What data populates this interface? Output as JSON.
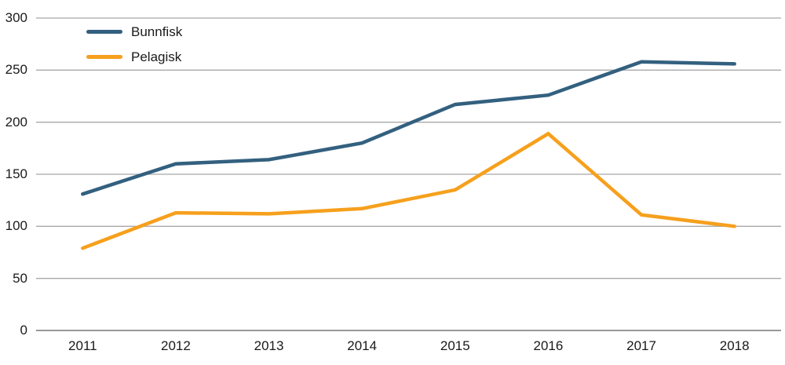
{
  "chart_data": {
    "type": "line",
    "title": "",
    "categories": [
      "2011",
      "2012",
      "2013",
      "2014",
      "2015",
      "2016",
      "2017",
      "2018"
    ],
    "series": [
      {
        "name": "Bunnfisk",
        "color": "#33607F",
        "values": [
          131,
          160,
          164,
          180,
          217,
          226,
          258,
          256
        ]
      },
      {
        "name": "Pelagisk",
        "color": "#F6A01D",
        "values": [
          79,
          113,
          112,
          117,
          135,
          189,
          111,
          100
        ]
      }
    ],
    "xlabel": "",
    "ylabel": "",
    "ylim": [
      0,
      300
    ],
    "yticks": [
      0,
      50,
      100,
      150,
      200,
      250,
      300
    ],
    "grid": "horizontal",
    "legend_position": "top-left"
  },
  "colors": {
    "background": "#FFFFFF",
    "gridline": "#A8A8A8",
    "axis_line": "#999999",
    "text": "#1A1A1A"
  }
}
